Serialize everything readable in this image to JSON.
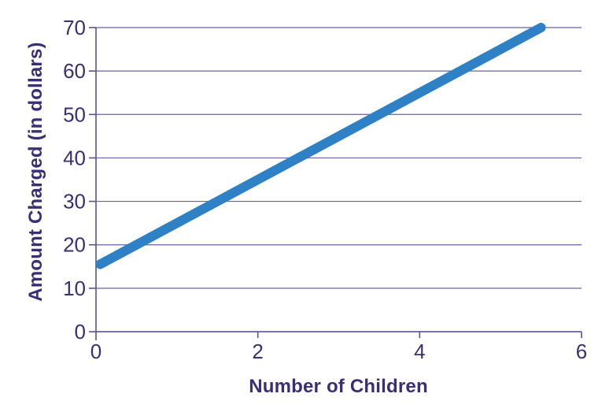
{
  "chart_data": {
    "type": "line",
    "title": "",
    "xlabel": "Number of Children",
    "ylabel": "Amount Charged (in dollars)",
    "xlim": [
      0,
      6
    ],
    "ylim": [
      0,
      70
    ],
    "xticks": [
      0,
      2,
      4,
      6
    ],
    "yticks": [
      0,
      10,
      20,
      30,
      40,
      50,
      60,
      70
    ],
    "grid": "horizontal-only",
    "legend": "none",
    "series": [
      {
        "name": "amount-charged-vs-children",
        "points": [
          {
            "x": 0,
            "y": 15
          },
          {
            "x": 5.5,
            "y": 70
          }
        ],
        "style": "thick-straight-line-round-caps"
      }
    ]
  },
  "colors": {
    "background": "#FFFFFF",
    "line": "#2E81C4",
    "axis": "#5B528E",
    "gridline": "#6A61A0",
    "tick_label_text": "#3C2E74",
    "axis_title_text": "#3C2E74"
  }
}
